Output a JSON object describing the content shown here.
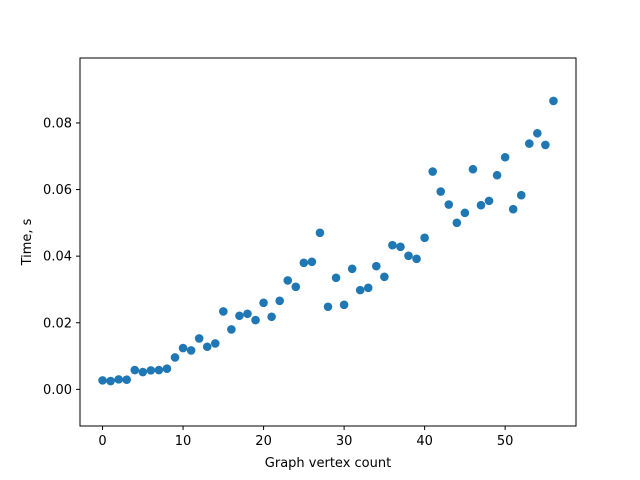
{
  "chart_data": {
    "type": "scatter",
    "title": "",
    "xlabel": "Graph vertex count",
    "ylabel": "Time, s",
    "xlim": [
      -2.8,
      58.8
    ],
    "ylim": [
      -0.011,
      0.0995
    ],
    "xticks": [
      0,
      10,
      20,
      30,
      40,
      50
    ],
    "xtick_labels": [
      "0",
      "10",
      "20",
      "30",
      "40",
      "50"
    ],
    "yticks": [
      0.0,
      0.02,
      0.04,
      0.06,
      0.08
    ],
    "ytick_labels": [
      "0.00",
      "0.02",
      "0.04",
      "0.06",
      "0.08"
    ],
    "grid": false,
    "marker_color": "#1f77b4",
    "series": [
      {
        "x": [
          0,
          1,
          2,
          3,
          4,
          5,
          6,
          7,
          8,
          9,
          10,
          11,
          12,
          13,
          14,
          15,
          16,
          17,
          18,
          19,
          20,
          21,
          22,
          23,
          24,
          25,
          26,
          27,
          28,
          29,
          30,
          31,
          32,
          33,
          34,
          35,
          36,
          37,
          38,
          39,
          40,
          41,
          42,
          43,
          44,
          45,
          46,
          47,
          48,
          49,
          50,
          51,
          52,
          53,
          54,
          55,
          56
        ],
        "y": [
          0.0027,
          0.0025,
          0.003,
          0.0029,
          0.0058,
          0.0052,
          0.0057,
          0.0058,
          0.0062,
          0.0096,
          0.0124,
          0.0117,
          0.0153,
          0.0128,
          0.0138,
          0.0234,
          0.018,
          0.0221,
          0.0227,
          0.0208,
          0.026,
          0.0218,
          0.0266,
          0.0327,
          0.0308,
          0.038,
          0.0383,
          0.047,
          0.0248,
          0.0335,
          0.0254,
          0.0362,
          0.0298,
          0.0305,
          0.037,
          0.0338,
          0.0433,
          0.0428,
          0.0401,
          0.0392,
          0.0455,
          0.0654,
          0.0594,
          0.0555,
          0.05,
          0.053,
          0.0661,
          0.0553,
          0.0566,
          0.0643,
          0.0697,
          0.0541,
          0.0583,
          0.0738,
          0.0769,
          0.0734,
          0.0866
        ]
      }
    ]
  }
}
